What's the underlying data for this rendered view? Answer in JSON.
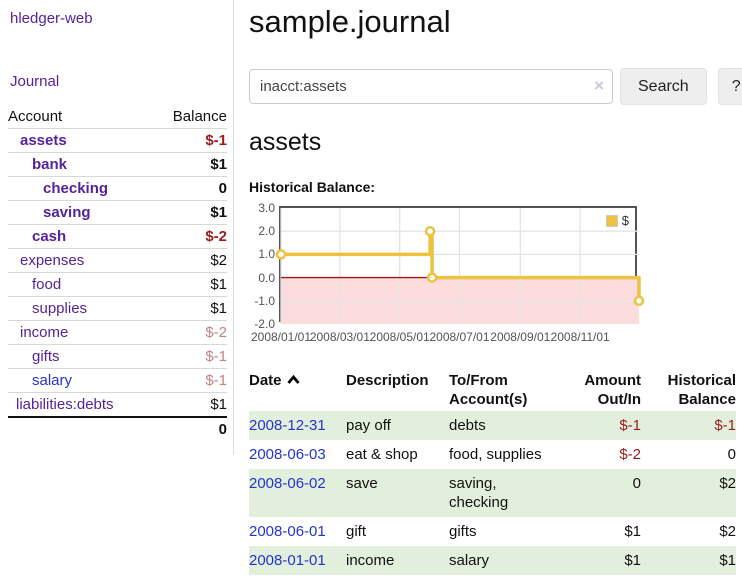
{
  "app": {
    "title": "hledger-web",
    "nav_journal": "Journal"
  },
  "sidebar": {
    "header": {
      "account": "Account",
      "balance": "Balance"
    },
    "accounts": [
      {
        "name": "assets",
        "balance": "$-1"
      },
      {
        "name": "bank",
        "balance": "$1"
      },
      {
        "name": "checking",
        "balance": "0"
      },
      {
        "name": "saving",
        "balance": "$1"
      },
      {
        "name": "cash",
        "balance": "$-2"
      },
      {
        "name": "expenses",
        "balance": "$2"
      },
      {
        "name": "food",
        "balance": "$1"
      },
      {
        "name": "supplies",
        "balance": "$1"
      },
      {
        "name": "income",
        "balance": "$-2"
      },
      {
        "name": "gifts",
        "balance": "$-1"
      },
      {
        "name": "salary",
        "balance": "$-1"
      },
      {
        "name": "liabilities:debts",
        "balance": "$1"
      }
    ],
    "total": "0"
  },
  "header": {
    "title": "sample.journal"
  },
  "search": {
    "value": "inacct:assets",
    "clear": "×",
    "button": "Search",
    "help": "?"
  },
  "account_page": {
    "heading": "assets",
    "chart_label": "Historical Balance:"
  },
  "chart_data": {
    "type": "line",
    "title": "Historical Balance:",
    "series": [
      {
        "name": "$",
        "color": "#edc240",
        "steps": true,
        "points": [
          [
            "2008-01-01",
            1
          ],
          [
            "2008-06-01",
            2
          ],
          [
            "2008-06-03",
            0
          ],
          [
            "2008-12-31",
            -1
          ]
        ]
      }
    ],
    "x_range": [
      "2008-01-01",
      "2008-12-31"
    ],
    "xticks": [
      "2008/01/01",
      "2008/03/01",
      "2008/05/01",
      "2008/07/01",
      "2008/09/01",
      "2008/11/01"
    ],
    "xtick_dates": [
      "2008-01-01",
      "2008-03-01",
      "2008-05-01",
      "2008-07-01",
      "2008-09-01",
      "2008-11-01"
    ],
    "yticks": [
      3.0,
      2.0,
      1.0,
      0.0,
      -1.0,
      -2.0
    ],
    "ylim": [
      -2,
      3
    ],
    "legend": {
      "label": "$",
      "position": "top-right"
    },
    "grid": true,
    "negative_region_fill": "#fcdcdc",
    "zero_line_color": "#aa1111"
  },
  "register": {
    "headers": {
      "date": "Date",
      "description": "Description",
      "tofrom_line1": "To/From",
      "tofrom_line2": "Account(s)",
      "amount_line1": "Amount",
      "amount_line2": "Out/In",
      "balance_line1": "Historical",
      "balance_line2": "Balance"
    },
    "rows": [
      {
        "date": "2008-12-31",
        "description": "pay off",
        "accounts": "debts",
        "amount": "$-1",
        "balance": "$-1"
      },
      {
        "date": "2008-06-03",
        "description": "eat & shop",
        "accounts": "food, supplies",
        "amount": "$-2",
        "balance": "0"
      },
      {
        "date": "2008-06-02",
        "description": "save",
        "accounts": "saving, checking",
        "amount": "0",
        "balance": "$2"
      },
      {
        "date": "2008-06-01",
        "description": "gift",
        "accounts": "gifts",
        "amount": "$1",
        "balance": "$2"
      },
      {
        "date": "2008-01-01",
        "description": "income",
        "accounts": "salary",
        "amount": "$1",
        "balance": "$1"
      }
    ]
  },
  "colors": {
    "link_purple": "#55239b",
    "link_blue": "#2633cc",
    "negative_dark_red": "#9e1b1b",
    "negative_rose": "#c38383",
    "row_green": "#e2efdc",
    "series_gold": "#edc240",
    "negative_region_pink": "#fcdcdc",
    "zero_line_red": "#aa1111"
  }
}
